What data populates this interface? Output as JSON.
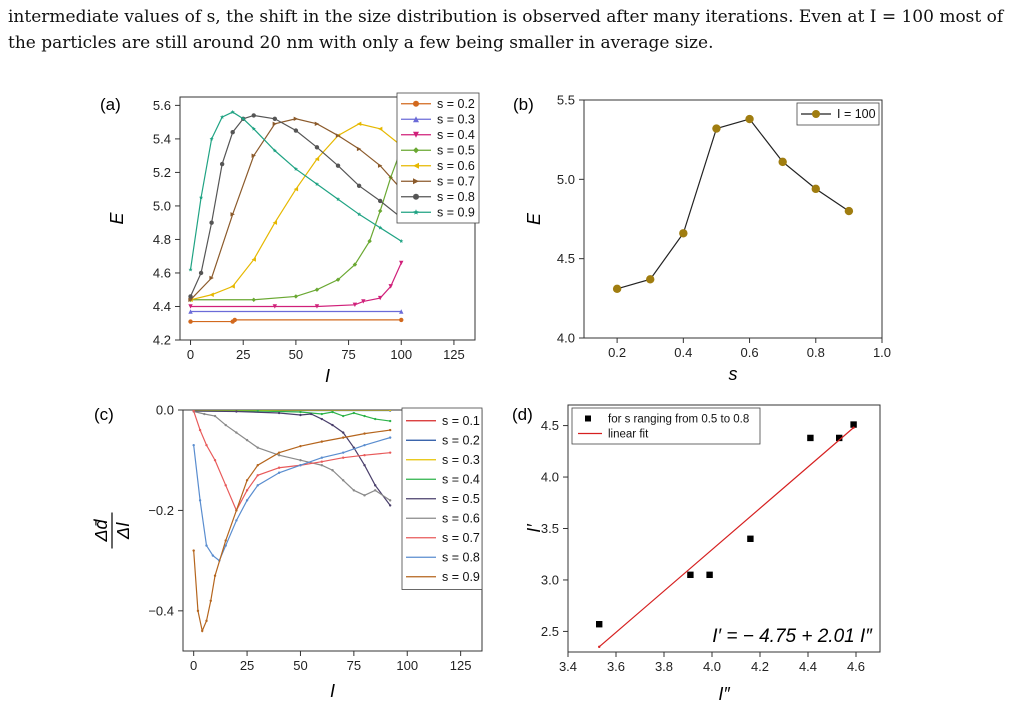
{
  "text": {
    "line1": "intermediate values of s, the shift in the size distribution is observed after many iterations. Even at I = 100 most of",
    "line2": "the particles are still around 20 nm with only a few being smaller in average size."
  },
  "chart_data": [
    {
      "panel": "(a)",
      "type": "line",
      "xlabel": "I",
      "ylabel": "E",
      "xlim": [
        -5,
        135
      ],
      "ylim": [
        4.2,
        5.65
      ],
      "xticks": [
        0,
        25,
        50,
        75,
        100,
        125
      ],
      "yticks": [
        4.2,
        4.4,
        4.6,
        4.8,
        5.0,
        5.2,
        5.4,
        5.6
      ],
      "ytick_labels": [
        "4.2",
        "4.4",
        "4.6",
        "4.8",
        "5.0",
        "5.2",
        "5.4",
        "5.6"
      ],
      "legend": "top-right",
      "grid": false,
      "series": [
        {
          "name": "s = 0.2",
          "color": "#d2691e",
          "marker": "circle",
          "x": [
            0,
            20,
            21,
            100
          ],
          "y": [
            4.31,
            4.31,
            4.32,
            4.32
          ]
        },
        {
          "name": "s = 0.3",
          "color": "#6b6bd8",
          "marker": "triangle",
          "x": [
            0,
            100
          ],
          "y": [
            4.37,
            4.37
          ]
        },
        {
          "name": "s = 0.4",
          "color": "#d0207a",
          "marker": "triangle-down",
          "x": [
            0,
            40,
            60,
            78,
            82,
            90,
            95,
            100
          ],
          "y": [
            4.4,
            4.4,
            4.4,
            4.41,
            4.43,
            4.45,
            4.52,
            4.66
          ]
        },
        {
          "name": "s = 0.5",
          "color": "#6aa832",
          "marker": "diamond",
          "x": [
            0,
            30,
            50,
            60,
            70,
            78,
            85,
            90,
            95,
            100
          ],
          "y": [
            4.44,
            4.44,
            4.46,
            4.5,
            4.56,
            4.65,
            4.79,
            4.97,
            5.17,
            5.34
          ]
        },
        {
          "name": "s = 0.6",
          "color": "#e6b800",
          "marker": "triangle-left",
          "x": [
            0,
            10,
            20,
            30,
            40,
            50,
            60,
            70,
            80,
            90,
            100
          ],
          "y": [
            4.44,
            4.47,
            4.52,
            4.68,
            4.9,
            5.1,
            5.28,
            5.42,
            5.49,
            5.46,
            5.36
          ]
        },
        {
          "name": "s = 0.7",
          "color": "#8b5a2b",
          "marker": "triangle-right",
          "x": [
            0,
            10,
            20,
            30,
            40,
            50,
            60,
            70,
            80,
            90,
            100
          ],
          "y": [
            4.44,
            4.57,
            4.95,
            5.3,
            5.49,
            5.52,
            5.49,
            5.42,
            5.34,
            5.24,
            5.1
          ]
        },
        {
          "name": "s = 0.8",
          "color": "#555555",
          "marker": "circle",
          "x": [
            0,
            5,
            10,
            15,
            20,
            25,
            30,
            40,
            50,
            60,
            70,
            80,
            90,
            100
          ],
          "y": [
            4.46,
            4.6,
            4.9,
            5.25,
            5.44,
            5.52,
            5.54,
            5.52,
            5.45,
            5.35,
            5.24,
            5.12,
            5.03,
            4.93
          ]
        },
        {
          "name": "s = 0.9",
          "color": "#1fa383",
          "marker": "star",
          "x": [
            0,
            5,
            10,
            15,
            20,
            25,
            30,
            40,
            50,
            60,
            70,
            80,
            90,
            100
          ],
          "y": [
            4.62,
            5.05,
            5.4,
            5.53,
            5.56,
            5.52,
            5.46,
            5.33,
            5.22,
            5.13,
            5.04,
            4.95,
            4.87,
            4.79
          ]
        }
      ]
    },
    {
      "panel": "(b)",
      "type": "line",
      "xlabel": "s",
      "ylabel": "E",
      "xlim": [
        0.1,
        1.0
      ],
      "ylim": [
        4.0,
        5.5
      ],
      "xticks": [
        0.2,
        0.4,
        0.6,
        0.8,
        1.0
      ],
      "xtick_labels": [
        "0.2",
        "0.4",
        "0.6",
        "0.8",
        "1.0"
      ],
      "yticks": [
        4.0,
        4.5,
        5.0,
        5.5
      ],
      "ytick_labels": [
        "4.0",
        "4.5",
        "5.0",
        "5.5"
      ],
      "legend": "top-right",
      "grid": false,
      "series": [
        {
          "name": "I = 100",
          "color": "#a07d10",
          "x": [
            0.2,
            0.3,
            0.4,
            0.5,
            0.6,
            0.7,
            0.8,
            0.9
          ],
          "y": [
            4.31,
            4.37,
            4.66,
            5.32,
            5.38,
            5.11,
            4.94,
            4.8
          ]
        }
      ]
    },
    {
      "panel": "(c)",
      "type": "line",
      "xlabel": "I",
      "ylabel": "Δd̄ / ΔI",
      "xlim": [
        -5,
        135
      ],
      "ylim": [
        -0.48,
        0.0
      ],
      "xticks": [
        0,
        25,
        50,
        75,
        100,
        125
      ],
      "yticks": [
        0.0,
        -0.2,
        -0.4
      ],
      "ytick_labels": [
        "0.0",
        "−0.2",
        "−0.4"
      ],
      "legend": "top-right",
      "grid": false,
      "series": [
        {
          "name": "s = 0.1",
          "color": "#d62828",
          "x": [
            0,
            92
          ],
          "y": [
            0.0,
            0.0
          ]
        },
        {
          "name": "s = 0.2",
          "color": "#1f4fa0",
          "x": [
            0,
            92
          ],
          "y": [
            -0.001,
            -0.001
          ]
        },
        {
          "name": "s = 0.3",
          "color": "#e6c200",
          "x": [
            0,
            92
          ],
          "y": [
            0.0,
            0.0
          ]
        },
        {
          "name": "s = 0.4",
          "color": "#2db34a",
          "x": [
            0,
            30,
            50,
            60,
            65,
            70,
            75,
            80,
            85,
            92
          ],
          "y": [
            -0.002,
            -0.002,
            -0.004,
            -0.008,
            -0.004,
            -0.012,
            -0.006,
            -0.012,
            -0.018,
            -0.022
          ]
        },
        {
          "name": "s = 0.5",
          "color": "#4a3f6b",
          "x": [
            0,
            20,
            40,
            50,
            55,
            60,
            65,
            70,
            75,
            80,
            85,
            92
          ],
          "y": [
            -0.002,
            -0.003,
            -0.006,
            -0.01,
            -0.008,
            -0.018,
            -0.03,
            -0.045,
            -0.075,
            -0.11,
            -0.15,
            -0.19
          ]
        },
        {
          "name": "s = 0.6",
          "color": "#8a8a8a",
          "x": [
            0,
            5,
            10,
            15,
            20,
            25,
            30,
            40,
            50,
            60,
            65,
            70,
            75,
            80,
            85,
            92
          ],
          "y": [
            -0.003,
            -0.008,
            -0.012,
            -0.03,
            -0.045,
            -0.06,
            -0.075,
            -0.09,
            -0.1,
            -0.11,
            -0.12,
            -0.14,
            -0.16,
            -0.17,
            -0.16,
            -0.18
          ]
        },
        {
          "name": "s = 0.7",
          "color": "#e85a5a",
          "x": [
            0,
            3,
            6,
            10,
            15,
            20,
            25,
            30,
            40,
            50,
            60,
            70,
            80,
            92
          ],
          "y": [
            -0.002,
            -0.04,
            -0.07,
            -0.1,
            -0.15,
            -0.2,
            -0.16,
            -0.13,
            -0.115,
            -0.11,
            -0.103,
            -0.095,
            -0.09,
            -0.085
          ]
        },
        {
          "name": "s = 0.8",
          "color": "#5a8dcf",
          "x": [
            0,
            3,
            6,
            9,
            12,
            15,
            20,
            25,
            30,
            40,
            50,
            60,
            70,
            80,
            92
          ],
          "y": [
            -0.07,
            -0.18,
            -0.27,
            -0.29,
            -0.3,
            -0.27,
            -0.22,
            -0.18,
            -0.15,
            -0.125,
            -0.11,
            -0.095,
            -0.085,
            -0.07,
            -0.055
          ]
        },
        {
          "name": "s = 0.9",
          "color": "#b5651d",
          "x": [
            0,
            2,
            4,
            6,
            8,
            10,
            15,
            20,
            25,
            30,
            40,
            50,
            60,
            70,
            80,
            92
          ],
          "y": [
            -0.28,
            -0.4,
            -0.44,
            -0.42,
            -0.38,
            -0.33,
            -0.26,
            -0.2,
            -0.14,
            -0.11,
            -0.085,
            -0.072,
            -0.063,
            -0.055,
            -0.047,
            -0.04
          ]
        }
      ]
    },
    {
      "panel": "(d)",
      "type": "scatter",
      "xlabel": "I″",
      "ylabel": "I′",
      "xlim": [
        3.4,
        4.7
      ],
      "ylim": [
        2.3,
        4.7
      ],
      "xticks": [
        3.4,
        3.6,
        3.8,
        4.0,
        4.2,
        4.4,
        4.6
      ],
      "xtick_labels": [
        "3.4",
        "3.6",
        "3.8",
        "4.0",
        "4.2",
        "4.4",
        "4.6"
      ],
      "yticks": [
        2.5,
        3.0,
        3.5,
        4.0,
        4.5
      ],
      "ytick_labels": [
        "2.5",
        "3.0",
        "3.5",
        "4.0",
        "4.5"
      ],
      "legend": "top-left",
      "grid": false,
      "series": [
        {
          "name": "for s ranging from 0.5 to 0.8",
          "color": "#000000",
          "x": [
            3.53,
            3.91,
            3.99,
            4.16,
            4.41,
            4.53,
            4.59
          ],
          "y": [
            2.57,
            3.05,
            3.05,
            3.4,
            4.38,
            4.38,
            4.51
          ]
        },
        {
          "name": "linear fit",
          "color": "#d62020",
          "kind": "line",
          "x": [
            3.53,
            4.59
          ],
          "y": [
            2.35,
            4.48
          ]
        }
      ],
      "annotation": "I′  = − 4.75 + 2.01 I″"
    }
  ]
}
